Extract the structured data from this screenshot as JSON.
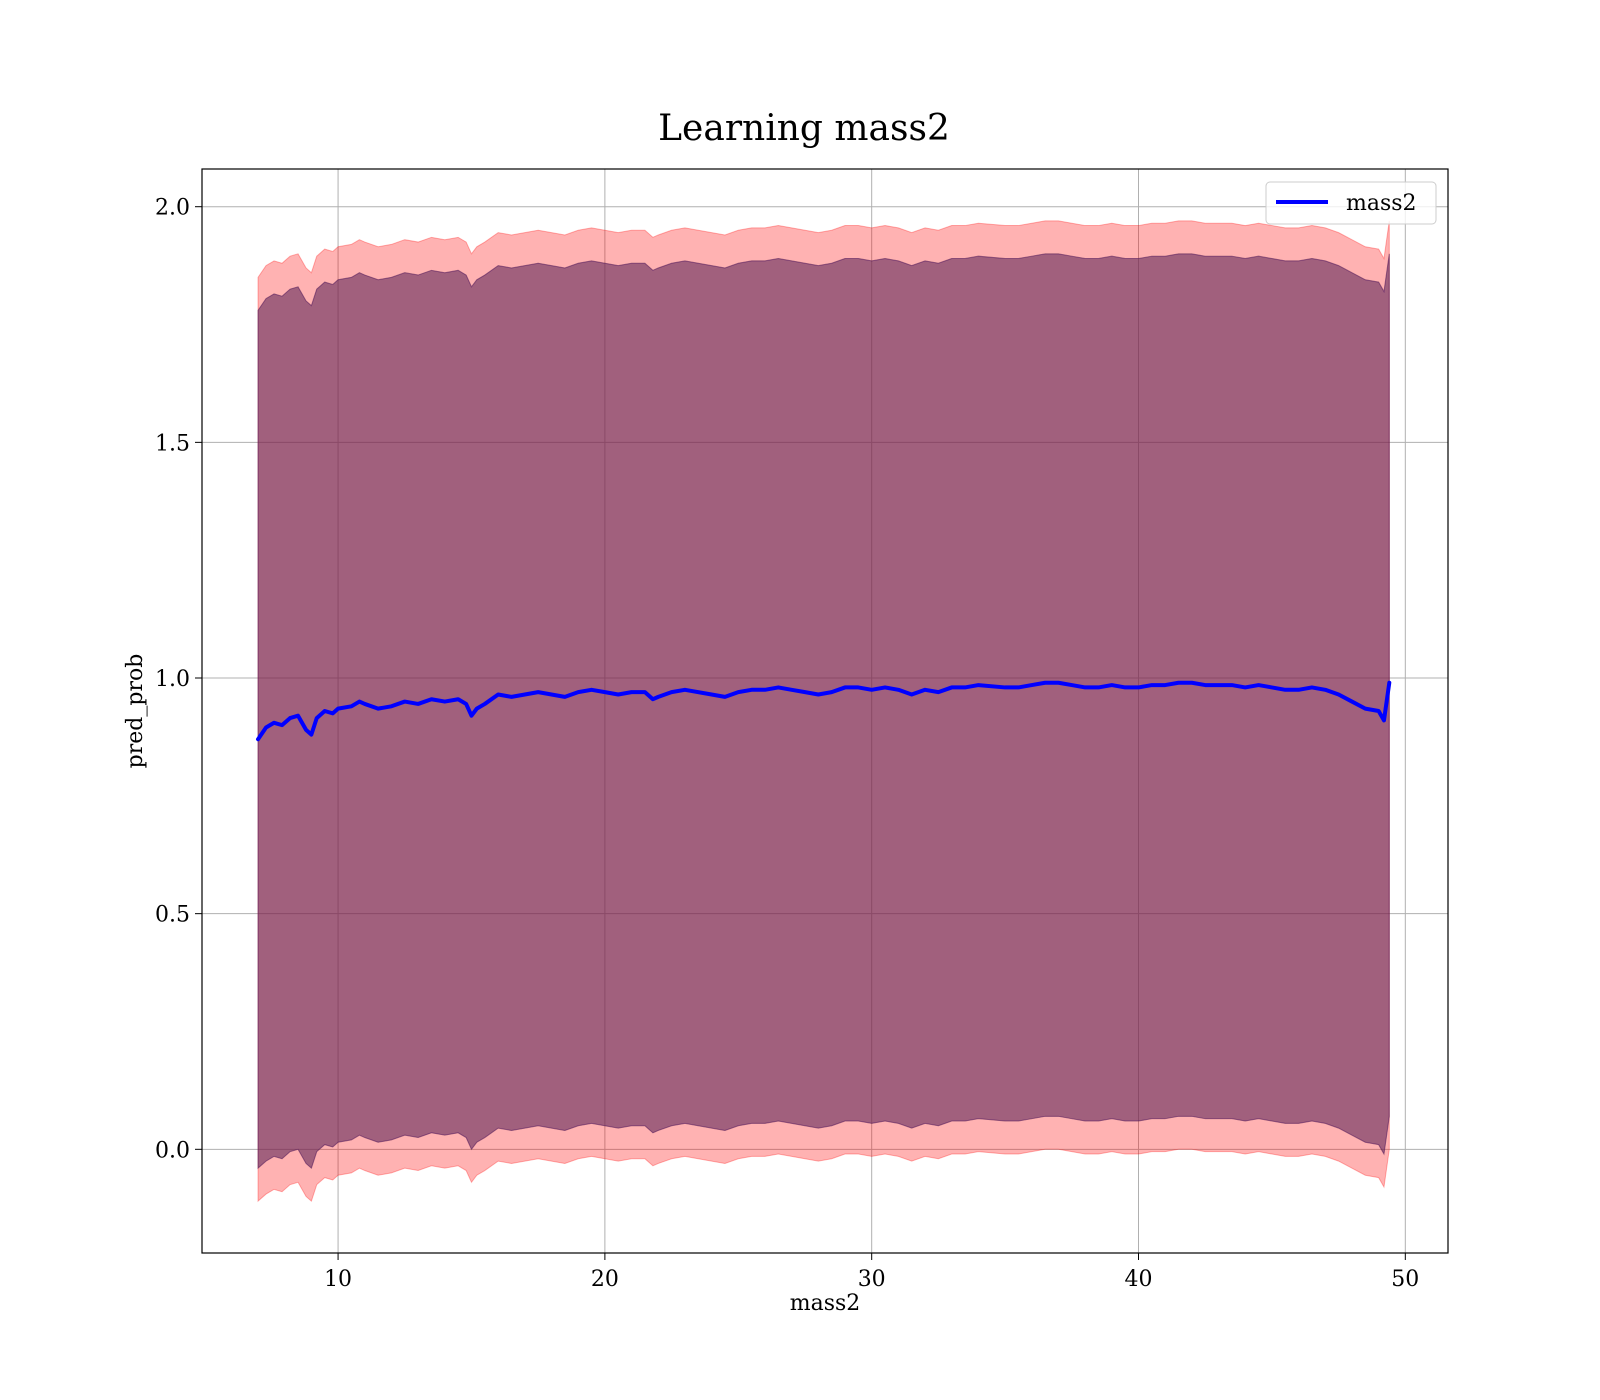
{
  "chart_data": {
    "type": "line",
    "title": "Learning mass2",
    "xlabel": "mass2",
    "ylabel": "pred_prob",
    "xlim": [
      4.9,
      51.6
    ],
    "ylim": [
      -0.22,
      2.08
    ],
    "grid": true,
    "legend_position": "upper right",
    "xticks": [
      10,
      20,
      30,
      40,
      50
    ],
    "yticks": [
      0.0,
      0.5,
      1.0,
      1.5,
      2.0
    ],
    "xtick_labels": [
      "10",
      "20",
      "30",
      "40",
      "50"
    ],
    "ytick_labels": [
      "0.0",
      "0.5",
      "1.0",
      "1.5",
      "2.0"
    ],
    "x": [
      7.0,
      7.3,
      7.6,
      7.9,
      8.2,
      8.5,
      8.8,
      9.0,
      9.2,
      9.5,
      9.8,
      10.0,
      10.5,
      10.8,
      11.0,
      11.5,
      12.0,
      12.5,
      13.0,
      13.5,
      14.0,
      14.5,
      14.8,
      15.0,
      15.2,
      15.5,
      16.0,
      16.5,
      17.0,
      17.5,
      18.0,
      18.5,
      19.0,
      19.5,
      20.0,
      20.5,
      21.0,
      21.5,
      21.8,
      22.0,
      22.5,
      23.0,
      24.0,
      24.5,
      25.0,
      25.5,
      26.0,
      26.5,
      27.0,
      27.5,
      28.0,
      28.5,
      29.0,
      29.5,
      30.0,
      30.5,
      31.0,
      31.5,
      32.0,
      32.5,
      33.0,
      33.5,
      34.0,
      35.0,
      35.5,
      36.0,
      36.5,
      37.0,
      37.5,
      38.0,
      38.5,
      39.0,
      39.5,
      40.0,
      40.5,
      41.0,
      41.5,
      42.0,
      42.5,
      43.0,
      43.5,
      44.0,
      44.5,
      45.0,
      45.5,
      46.0,
      46.5,
      47.0,
      47.5,
      48.0,
      48.5,
      49.0,
      49.2,
      49.4
    ],
    "series": [
      {
        "name": "mass2",
        "color": "#0000ff",
        "values": [
          0.87,
          0.895,
          0.905,
          0.9,
          0.915,
          0.92,
          0.89,
          0.88,
          0.915,
          0.93,
          0.925,
          0.935,
          0.94,
          0.95,
          0.945,
          0.935,
          0.94,
          0.95,
          0.945,
          0.955,
          0.95,
          0.955,
          0.945,
          0.92,
          0.935,
          0.945,
          0.965,
          0.96,
          0.965,
          0.97,
          0.965,
          0.96,
          0.97,
          0.975,
          0.97,
          0.965,
          0.97,
          0.97,
          0.955,
          0.96,
          0.97,
          0.975,
          0.965,
          0.96,
          0.97,
          0.975,
          0.975,
          0.98,
          0.975,
          0.97,
          0.965,
          0.97,
          0.98,
          0.98,
          0.975,
          0.98,
          0.975,
          0.965,
          0.975,
          0.97,
          0.98,
          0.98,
          0.985,
          0.98,
          0.98,
          0.985,
          0.99,
          0.99,
          0.985,
          0.98,
          0.98,
          0.985,
          0.98,
          0.98,
          0.985,
          0.985,
          0.99,
          0.99,
          0.985,
          0.985,
          0.985,
          0.98,
          0.985,
          0.98,
          0.975,
          0.975,
          0.98,
          0.975,
          0.965,
          0.95,
          0.935,
          0.93,
          0.91,
          0.99
        ]
      }
    ],
    "bands": [
      {
        "color": "#ff0000",
        "opacity": 0.3,
        "lower": [
          -0.11,
          -0.095,
          -0.085,
          -0.09,
          -0.075,
          -0.07,
          -0.1,
          -0.11,
          -0.075,
          -0.06,
          -0.065,
          -0.055,
          -0.05,
          -0.04,
          -0.045,
          -0.055,
          -0.05,
          -0.04,
          -0.045,
          -0.035,
          -0.04,
          -0.035,
          -0.045,
          -0.07,
          -0.055,
          -0.045,
          -0.025,
          -0.03,
          -0.025,
          -0.02,
          -0.025,
          -0.03,
          -0.02,
          -0.015,
          -0.02,
          -0.025,
          -0.02,
          -0.02,
          -0.035,
          -0.03,
          -0.02,
          -0.015,
          -0.025,
          -0.03,
          -0.02,
          -0.015,
          -0.015,
          -0.01,
          -0.015,
          -0.02,
          -0.025,
          -0.02,
          -0.01,
          -0.01,
          -0.015,
          -0.01,
          -0.015,
          -0.025,
          -0.015,
          -0.02,
          -0.01,
          -0.01,
          -0.005,
          -0.01,
          -0.01,
          -0.005,
          0.0,
          0.0,
          -0.005,
          -0.01,
          -0.01,
          -0.005,
          -0.01,
          -0.01,
          -0.005,
          -0.005,
          0.0,
          0.0,
          -0.005,
          -0.005,
          -0.005,
          -0.01,
          -0.005,
          -0.01,
          -0.015,
          -0.015,
          -0.01,
          -0.015,
          -0.025,
          -0.04,
          -0.055,
          -0.06,
          -0.08,
          0.0
        ],
        "upper": [
          1.85,
          1.875,
          1.885,
          1.88,
          1.895,
          1.9,
          1.87,
          1.86,
          1.895,
          1.91,
          1.905,
          1.915,
          1.92,
          1.93,
          1.925,
          1.915,
          1.92,
          1.93,
          1.925,
          1.935,
          1.93,
          1.935,
          1.925,
          1.9,
          1.915,
          1.925,
          1.945,
          1.94,
          1.945,
          1.95,
          1.945,
          1.94,
          1.95,
          1.955,
          1.95,
          1.945,
          1.95,
          1.95,
          1.935,
          1.94,
          1.95,
          1.955,
          1.945,
          1.94,
          1.95,
          1.955,
          1.955,
          1.96,
          1.955,
          1.95,
          1.945,
          1.95,
          1.96,
          1.96,
          1.955,
          1.96,
          1.955,
          1.945,
          1.955,
          1.95,
          1.96,
          1.96,
          1.965,
          1.96,
          1.96,
          1.965,
          1.97,
          1.97,
          1.965,
          1.96,
          1.96,
          1.965,
          1.96,
          1.96,
          1.965,
          1.965,
          1.97,
          1.97,
          1.965,
          1.965,
          1.965,
          1.96,
          1.965,
          1.96,
          1.955,
          1.955,
          1.96,
          1.955,
          1.945,
          1.93,
          1.915,
          1.91,
          1.89,
          1.97
        ]
      },
      {
        "color": "#808000",
        "opacity": 0.3,
        "lower": [
          -0.04,
          -0.025,
          -0.015,
          -0.02,
          -0.005,
          0.0,
          -0.03,
          -0.04,
          -0.005,
          0.01,
          0.005,
          0.015,
          0.02,
          0.03,
          0.025,
          0.015,
          0.02,
          0.03,
          0.025,
          0.035,
          0.03,
          0.035,
          0.025,
          0.0,
          0.015,
          0.025,
          0.045,
          0.04,
          0.045,
          0.05,
          0.045,
          0.04,
          0.05,
          0.055,
          0.05,
          0.045,
          0.05,
          0.05,
          0.035,
          0.04,
          0.05,
          0.055,
          0.045,
          0.04,
          0.05,
          0.055,
          0.055,
          0.06,
          0.055,
          0.05,
          0.045,
          0.05,
          0.06,
          0.06,
          0.055,
          0.06,
          0.055,
          0.045,
          0.055,
          0.05,
          0.06,
          0.06,
          0.065,
          0.06,
          0.06,
          0.065,
          0.07,
          0.07,
          0.065,
          0.06,
          0.06,
          0.065,
          0.06,
          0.06,
          0.065,
          0.065,
          0.07,
          0.07,
          0.065,
          0.065,
          0.065,
          0.06,
          0.065,
          0.06,
          0.055,
          0.055,
          0.06,
          0.055,
          0.045,
          0.03,
          0.015,
          0.01,
          -0.01,
          0.07
        ],
        "upper": [
          1.78,
          1.805,
          1.815,
          1.81,
          1.825,
          1.83,
          1.8,
          1.79,
          1.825,
          1.84,
          1.835,
          1.845,
          1.85,
          1.86,
          1.855,
          1.845,
          1.85,
          1.86,
          1.855,
          1.865,
          1.86,
          1.865,
          1.855,
          1.83,
          1.845,
          1.855,
          1.875,
          1.87,
          1.875,
          1.88,
          1.875,
          1.87,
          1.88,
          1.885,
          1.88,
          1.875,
          1.88,
          1.88,
          1.865,
          1.87,
          1.88,
          1.885,
          1.875,
          1.87,
          1.88,
          1.885,
          1.885,
          1.89,
          1.885,
          1.88,
          1.875,
          1.88,
          1.89,
          1.89,
          1.885,
          1.89,
          1.885,
          1.875,
          1.885,
          1.88,
          1.89,
          1.89,
          1.895,
          1.89,
          1.89,
          1.895,
          1.9,
          1.9,
          1.895,
          1.89,
          1.89,
          1.895,
          1.89,
          1.89,
          1.895,
          1.895,
          1.9,
          1.9,
          1.895,
          1.895,
          1.895,
          1.89,
          1.895,
          1.89,
          1.885,
          1.885,
          1.89,
          1.885,
          1.875,
          1.86,
          1.845,
          1.84,
          1.82,
          1.9
        ]
      },
      {
        "color": "#800080",
        "opacity": 0.3,
        "lower": [
          -0.04,
          -0.025,
          -0.015,
          -0.02,
          -0.005,
          0.0,
          -0.03,
          -0.04,
          -0.005,
          0.01,
          0.005,
          0.015,
          0.02,
          0.03,
          0.025,
          0.015,
          0.02,
          0.03,
          0.025,
          0.035,
          0.03,
          0.035,
          0.025,
          0.0,
          0.015,
          0.025,
          0.045,
          0.04,
          0.045,
          0.05,
          0.045,
          0.04,
          0.05,
          0.055,
          0.05,
          0.045,
          0.05,
          0.05,
          0.035,
          0.04,
          0.05,
          0.055,
          0.045,
          0.04,
          0.05,
          0.055,
          0.055,
          0.06,
          0.055,
          0.05,
          0.045,
          0.05,
          0.06,
          0.06,
          0.055,
          0.06,
          0.055,
          0.045,
          0.055,
          0.05,
          0.06,
          0.06,
          0.065,
          0.06,
          0.06,
          0.065,
          0.07,
          0.07,
          0.065,
          0.06,
          0.06,
          0.065,
          0.06,
          0.06,
          0.065,
          0.065,
          0.07,
          0.07,
          0.065,
          0.065,
          0.065,
          0.06,
          0.065,
          0.06,
          0.055,
          0.055,
          0.06,
          0.055,
          0.045,
          0.03,
          0.015,
          0.01,
          -0.01,
          0.07
        ],
        "upper": [
          1.78,
          1.805,
          1.815,
          1.81,
          1.825,
          1.83,
          1.8,
          1.79,
          1.825,
          1.84,
          1.835,
          1.845,
          1.85,
          1.86,
          1.855,
          1.845,
          1.85,
          1.86,
          1.855,
          1.865,
          1.86,
          1.865,
          1.855,
          1.83,
          1.845,
          1.855,
          1.875,
          1.87,
          1.875,
          1.88,
          1.875,
          1.87,
          1.88,
          1.885,
          1.88,
          1.875,
          1.88,
          1.88,
          1.865,
          1.87,
          1.88,
          1.885,
          1.875,
          1.87,
          1.88,
          1.885,
          1.885,
          1.89,
          1.885,
          1.88,
          1.875,
          1.88,
          1.89,
          1.89,
          1.885,
          1.89,
          1.885,
          1.875,
          1.885,
          1.88,
          1.89,
          1.89,
          1.895,
          1.89,
          1.89,
          1.895,
          1.9,
          1.9,
          1.895,
          1.89,
          1.89,
          1.895,
          1.89,
          1.89,
          1.895,
          1.895,
          1.9,
          1.9,
          1.895,
          1.895,
          1.895,
          1.89,
          1.895,
          1.89,
          1.885,
          1.885,
          1.89,
          1.885,
          1.875,
          1.86,
          1.845,
          1.84,
          1.82,
          1.9
        ]
      },
      {
        "color": "#000080",
        "opacity": 0.15,
        "lower": [
          -0.04,
          -0.025,
          -0.015,
          -0.02,
          -0.005,
          0.0,
          -0.03,
          -0.04,
          -0.005,
          0.01,
          0.005,
          0.015,
          0.02,
          0.03,
          0.025,
          0.015,
          0.02,
          0.03,
          0.025,
          0.035,
          0.03,
          0.035,
          0.025,
          0.0,
          0.015,
          0.025,
          0.045,
          0.04,
          0.045,
          0.05,
          0.045,
          0.04,
          0.05,
          0.055,
          0.05,
          0.045,
          0.05,
          0.05,
          0.035,
          0.04,
          0.05,
          0.055,
          0.045,
          0.04,
          0.05,
          0.055,
          0.055,
          0.06,
          0.055,
          0.05,
          0.045,
          0.05,
          0.06,
          0.06,
          0.055,
          0.06,
          0.055,
          0.045,
          0.055,
          0.05,
          0.06,
          0.06,
          0.065,
          0.06,
          0.06,
          0.065,
          0.07,
          0.07,
          0.065,
          0.06,
          0.06,
          0.065,
          0.06,
          0.06,
          0.065,
          0.065,
          0.07,
          0.07,
          0.065,
          0.065,
          0.065,
          0.06,
          0.065,
          0.06,
          0.055,
          0.055,
          0.06,
          0.055,
          0.045,
          0.03,
          0.015,
          0.01,
          -0.01,
          0.07
        ],
        "upper": [
          1.78,
          1.805,
          1.815,
          1.81,
          1.825,
          1.83,
          1.8,
          1.79,
          1.825,
          1.84,
          1.835,
          1.845,
          1.85,
          1.86,
          1.855,
          1.845,
          1.85,
          1.86,
          1.855,
          1.865,
          1.86,
          1.865,
          1.855,
          1.83,
          1.845,
          1.855,
          1.875,
          1.87,
          1.875,
          1.88,
          1.875,
          1.87,
          1.88,
          1.885,
          1.88,
          1.875,
          1.88,
          1.88,
          1.865,
          1.87,
          1.88,
          1.885,
          1.875,
          1.87,
          1.88,
          1.885,
          1.885,
          1.89,
          1.885,
          1.88,
          1.875,
          1.88,
          1.89,
          1.89,
          1.885,
          1.89,
          1.885,
          1.875,
          1.885,
          1.88,
          1.89,
          1.89,
          1.895,
          1.89,
          1.89,
          1.895,
          1.9,
          1.9,
          1.895,
          1.89,
          1.89,
          1.895,
          1.89,
          1.89,
          1.895,
          1.895,
          1.9,
          1.9,
          1.895,
          1.895,
          1.895,
          1.89,
          1.895,
          1.89,
          1.885,
          1.885,
          1.89,
          1.885,
          1.875,
          1.86,
          1.845,
          1.84,
          1.82,
          1.9
        ]
      }
    ],
    "legend": [
      {
        "label": "mass2",
        "color": "#0000ff"
      }
    ],
    "colors": {
      "grid": "#b0b0b0",
      "frame": "#000000",
      "line": "#0000ff"
    }
  }
}
